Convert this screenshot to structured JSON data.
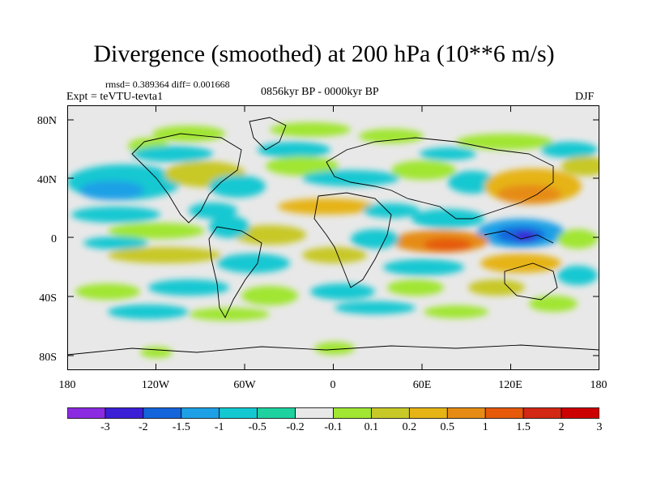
{
  "title": "Divergence (smoothed) at 200 hPa (10**6 m/s)",
  "stats": "rmsd= 0.389364 diff= 0.001668",
  "experiment": "Expt = teVTU-tevta1",
  "period": "0856kyr BP - 0000kyr BP",
  "season": "DJF",
  "map": {
    "lat_ticks": [
      "80N",
      "40N",
      "0",
      "40S",
      "80S"
    ],
    "lon_ticks": [
      "180",
      "120W",
      "60W",
      "0",
      "60E",
      "120E",
      "180"
    ],
    "background_color": "#e8e8e8"
  },
  "colorbar": {
    "labels": [
      "-3",
      "-2",
      "-1.5",
      "-1",
      "-0.5",
      "-0.2",
      "-0.1",
      "0.1",
      "0.2",
      "0.5",
      "1",
      "1.5",
      "2",
      "3"
    ],
    "colors": [
      "#8a2be2",
      "#3a1fd6",
      "#1464dc",
      "#1ea0e6",
      "#14c8d2",
      "#1ed2a0",
      "#e8e8e8",
      "#a0e632",
      "#c8c828",
      "#e6b414",
      "#e68c14",
      "#e65a0a",
      "#d22814",
      "#cc0000"
    ]
  }
}
